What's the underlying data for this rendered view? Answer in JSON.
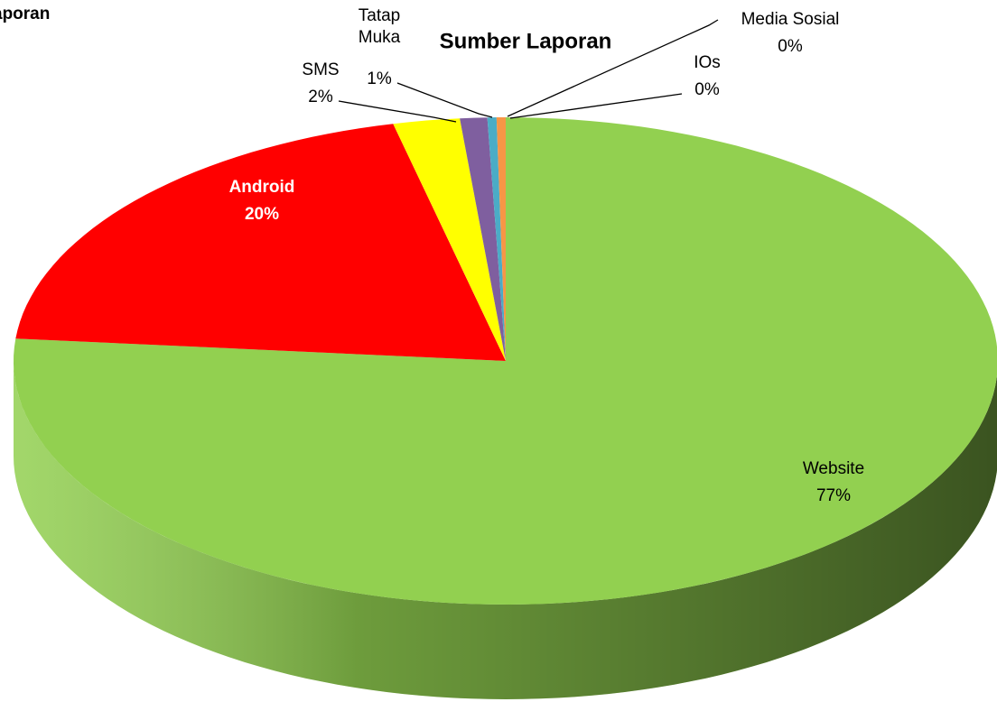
{
  "chart_data": {
    "type": "pie",
    "title": "Sumber Laporan",
    "annotations": [
      "aporan"
    ],
    "categories": [
      "Website",
      "Android",
      "SMS",
      "Tatap Muka",
      "IOs",
      "Media Sosial"
    ],
    "values": [
      77,
      20,
      2.2,
      0.9,
      0.3,
      0.3
    ],
    "value_labels": [
      "77%",
      "20%",
      "2%",
      "1%",
      "0%",
      "0%"
    ],
    "colors": [
      "#92d050",
      "#ff0000",
      "#ffff00",
      "#7f5f9f",
      "#4bacc6",
      "#f79646"
    ],
    "start_angle": 0,
    "direction": "clockwise",
    "three_d": true
  }
}
